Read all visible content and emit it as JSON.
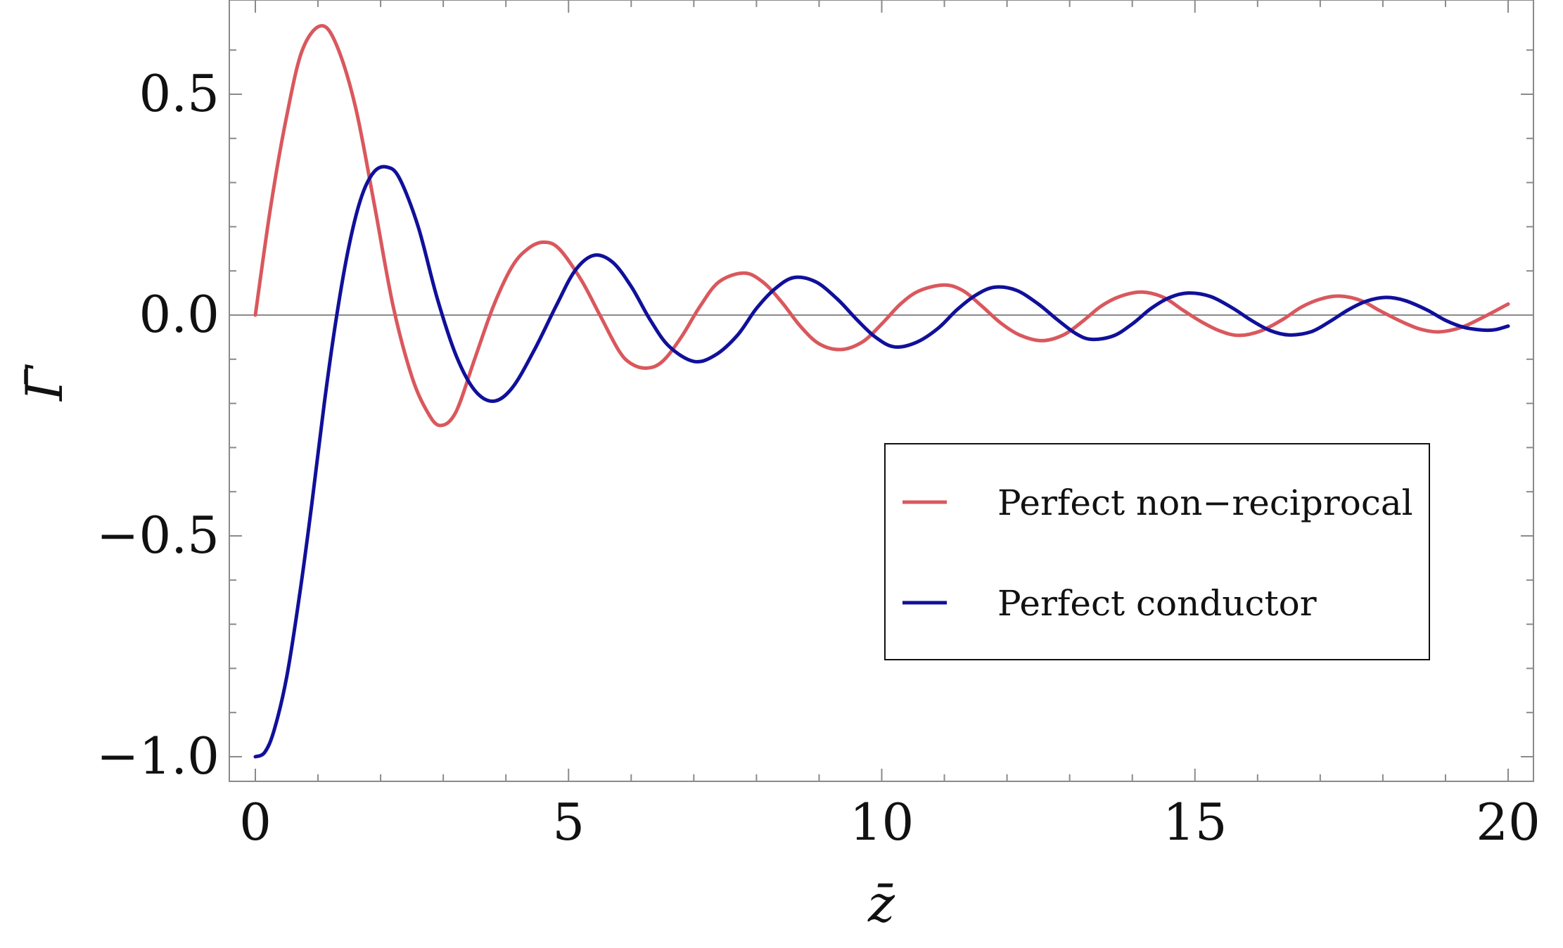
{
  "chart_data": {
    "type": "line",
    "title": "",
    "xlabel": "z̄",
    "ylabel": "Γ̄",
    "xlim": [
      -0.4,
      20.4
    ],
    "ylim": [
      -1.05,
      0.7
    ],
    "x_ticks": [
      0,
      5,
      10,
      15,
      20
    ],
    "x_tick_labels": [
      "0",
      "5",
      "10",
      "15",
      "20"
    ],
    "y_ticks": [
      -1.0,
      -0.5,
      0.0,
      0.5
    ],
    "y_tick_labels": [
      "−1.0",
      "−0.5",
      "0.0",
      "0.5"
    ],
    "grid": false,
    "zero_line": true,
    "legend_position": "center-right",
    "legend_entries": [
      "Perfect non−reciprocal",
      "Perfect conductor"
    ],
    "series": [
      {
        "name": "Perfect non−reciprocal",
        "color": "#d9585d",
        "points": [
          [
            0,
            0.0
          ],
          [
            0.25,
            0.25
          ],
          [
            0.5,
            0.45
          ],
          [
            0.75,
            0.6
          ],
          [
            1.05,
            0.655
          ],
          [
            1.3,
            0.61
          ],
          [
            1.6,
            0.47
          ],
          [
            1.9,
            0.25
          ],
          [
            2.2,
            0.02
          ],
          [
            2.5,
            -0.14
          ],
          [
            2.75,
            -0.22
          ],
          [
            2.95,
            -0.25
          ],
          [
            3.2,
            -0.22
          ],
          [
            3.5,
            -0.1
          ],
          [
            3.8,
            0.02
          ],
          [
            4.1,
            0.11
          ],
          [
            4.35,
            0.15
          ],
          [
            4.6,
            0.165
          ],
          [
            4.85,
            0.15
          ],
          [
            5.2,
            0.08
          ],
          [
            5.5,
            0.0
          ],
          [
            5.8,
            -0.08
          ],
          [
            6.0,
            -0.11
          ],
          [
            6.25,
            -0.12
          ],
          [
            6.5,
            -0.105
          ],
          [
            6.8,
            -0.05
          ],
          [
            7.1,
            0.02
          ],
          [
            7.4,
            0.075
          ],
          [
            7.8,
            0.095
          ],
          [
            8.1,
            0.075
          ],
          [
            8.4,
            0.03
          ],
          [
            8.7,
            -0.025
          ],
          [
            9.0,
            -0.065
          ],
          [
            9.35,
            -0.078
          ],
          [
            9.7,
            -0.06
          ],
          [
            10.0,
            -0.02
          ],
          [
            10.3,
            0.025
          ],
          [
            10.6,
            0.055
          ],
          [
            11.0,
            0.068
          ],
          [
            11.3,
            0.055
          ],
          [
            11.6,
            0.02
          ],
          [
            11.9,
            -0.018
          ],
          [
            12.2,
            -0.045
          ],
          [
            12.55,
            -0.058
          ],
          [
            12.9,
            -0.045
          ],
          [
            13.2,
            -0.015
          ],
          [
            13.5,
            0.02
          ],
          [
            13.8,
            0.042
          ],
          [
            14.15,
            0.052
          ],
          [
            14.5,
            0.04
          ],
          [
            14.8,
            0.012
          ],
          [
            15.1,
            -0.015
          ],
          [
            15.4,
            -0.036
          ],
          [
            15.7,
            -0.046
          ],
          [
            16.05,
            -0.036
          ],
          [
            16.4,
            -0.01
          ],
          [
            16.7,
            0.018
          ],
          [
            17.0,
            0.036
          ],
          [
            17.3,
            0.043
          ],
          [
            17.65,
            0.033
          ],
          [
            17.95,
            0.01
          ],
          [
            18.3,
            -0.015
          ],
          [
            18.6,
            -0.032
          ],
          [
            18.9,
            -0.038
          ],
          [
            19.25,
            -0.028
          ],
          [
            19.6,
            -0.005
          ],
          [
            20.0,
            0.025
          ]
        ]
      },
      {
        "name": "Perfect conductor",
        "color": "#10109a",
        "points": [
          [
            0,
            -1.0
          ],
          [
            0.15,
            -0.99
          ],
          [
            0.3,
            -0.94
          ],
          [
            0.5,
            -0.82
          ],
          [
            0.7,
            -0.64
          ],
          [
            0.9,
            -0.43
          ],
          [
            1.1,
            -0.2
          ],
          [
            1.3,
            0.0
          ],
          [
            1.5,
            0.16
          ],
          [
            1.7,
            0.27
          ],
          [
            1.9,
            0.325
          ],
          [
            2.1,
            0.335
          ],
          [
            2.3,
            0.31
          ],
          [
            2.6,
            0.2
          ],
          [
            2.9,
            0.04
          ],
          [
            3.2,
            -0.09
          ],
          [
            3.5,
            -0.17
          ],
          [
            3.8,
            -0.195
          ],
          [
            4.1,
            -0.165
          ],
          [
            4.45,
            -0.08
          ],
          [
            4.8,
            0.02
          ],
          [
            5.1,
            0.1
          ],
          [
            5.4,
            0.135
          ],
          [
            5.7,
            0.12
          ],
          [
            6.0,
            0.065
          ],
          [
            6.3,
            -0.01
          ],
          [
            6.6,
            -0.07
          ],
          [
            7.0,
            -0.105
          ],
          [
            7.35,
            -0.09
          ],
          [
            7.7,
            -0.045
          ],
          [
            8.0,
            0.015
          ],
          [
            8.3,
            0.06
          ],
          [
            8.6,
            0.085
          ],
          [
            8.95,
            0.075
          ],
          [
            9.3,
            0.035
          ],
          [
            9.6,
            -0.01
          ],
          [
            9.9,
            -0.05
          ],
          [
            10.2,
            -0.072
          ],
          [
            10.55,
            -0.062
          ],
          [
            10.9,
            -0.03
          ],
          [
            11.2,
            0.012
          ],
          [
            11.5,
            0.045
          ],
          [
            11.8,
            0.063
          ],
          [
            12.15,
            0.056
          ],
          [
            12.5,
            0.025
          ],
          [
            12.8,
            -0.01
          ],
          [
            13.1,
            -0.042
          ],
          [
            13.35,
            -0.055
          ],
          [
            13.7,
            -0.047
          ],
          [
            14.0,
            -0.02
          ],
          [
            14.3,
            0.015
          ],
          [
            14.6,
            0.04
          ],
          [
            14.9,
            0.05
          ],
          [
            15.25,
            0.042
          ],
          [
            15.6,
            0.016
          ],
          [
            15.9,
            -0.012
          ],
          [
            16.2,
            -0.035
          ],
          [
            16.5,
            -0.045
          ],
          [
            16.85,
            -0.038
          ],
          [
            17.15,
            -0.015
          ],
          [
            17.45,
            0.012
          ],
          [
            17.75,
            0.032
          ],
          [
            18.05,
            0.04
          ],
          [
            18.35,
            0.033
          ],
          [
            18.7,
            0.012
          ],
          [
            19.0,
            -0.012
          ],
          [
            19.3,
            -0.028
          ],
          [
            19.6,
            -0.034
          ],
          [
            19.8,
            -0.033
          ],
          [
            20.0,
            -0.025
          ]
        ]
      }
    ]
  }
}
